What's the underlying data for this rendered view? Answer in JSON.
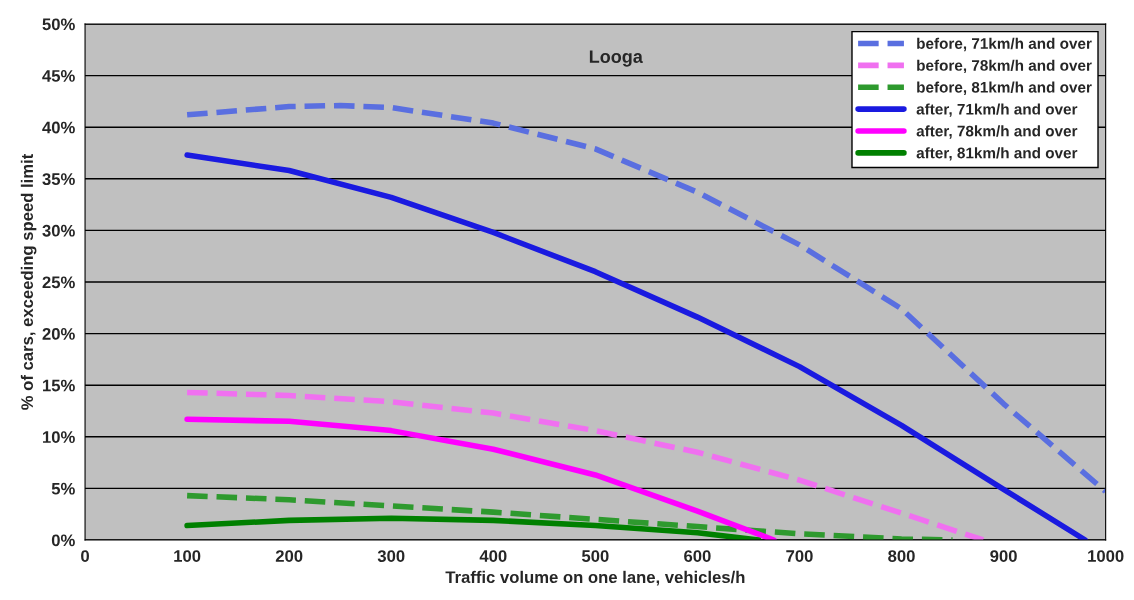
{
  "chart_data": {
    "type": "line",
    "title": "Looga",
    "xlabel": "Traffic volume on one lane, vehicles/h",
    "ylabel": "% of cars, exceeding speed limit",
    "xlim": [
      0,
      1000
    ],
    "xticks": [
      0,
      100,
      200,
      300,
      400,
      500,
      600,
      700,
      800,
      900,
      1000
    ],
    "ylim": [
      0,
      50
    ],
    "yticks": [
      {
        "value": 0,
        "label": "0%"
      },
      {
        "value": 5,
        "label": "5%"
      },
      {
        "value": 10,
        "label": "10%"
      },
      {
        "value": 15,
        "label": "15%"
      },
      {
        "value": 20,
        "label": "20%"
      },
      {
        "value": 25,
        "label": "25%"
      },
      {
        "value": 30,
        "label": "30%"
      },
      {
        "value": 35,
        "label": "35%"
      },
      {
        "value": 40,
        "label": "40%"
      },
      {
        "value": 45,
        "label": "45%"
      },
      {
        "value": 50,
        "label": "50%"
      }
    ],
    "grid": "y",
    "legend": "top right",
    "marker": "none",
    "series": [
      {
        "name": "before, 71km/h and over",
        "color": "#5a6fe0",
        "line_style": "dashed",
        "x": [
          100,
          200,
          250,
          300,
          400,
          500,
          600,
          700,
          800,
          900,
          1000
        ],
        "values": [
          41.2,
          42.0,
          42.1,
          41.9,
          40.4,
          37.9,
          33.7,
          28.6,
          22.4,
          13.2,
          4.7
        ]
      },
      {
        "name": "before, 78km/h and over",
        "color": "#f070f0",
        "line_style": "dashed",
        "x": [
          100,
          200,
          300,
          400,
          500,
          600,
          700,
          800,
          880
        ],
        "values": [
          14.3,
          14.0,
          13.4,
          12.3,
          10.6,
          8.5,
          5.8,
          2.6,
          0
        ]
      },
      {
        "name": "before, 81km/h and over",
        "color": "#2e9a2e",
        "line_style": "dashed",
        "x": [
          100,
          200,
          300,
          400,
          500,
          600,
          700,
          800,
          850
        ],
        "values": [
          4.3,
          3.9,
          3.3,
          2.7,
          2.0,
          1.3,
          0.6,
          0.1,
          0
        ]
      },
      {
        "name": "after, 71km/h and over",
        "color": "#1a1ae0",
        "line_style": "solid",
        "x": [
          100,
          200,
          300,
          400,
          500,
          600,
          700,
          800,
          900,
          980
        ],
        "values": [
          37.3,
          35.8,
          33.2,
          29.8,
          26.0,
          21.6,
          16.8,
          11.1,
          4.9,
          0
        ]
      },
      {
        "name": "after, 78km/h and over",
        "color": "#ff00ff",
        "line_style": "solid",
        "x": [
          100,
          200,
          300,
          400,
          500,
          600,
          675
        ],
        "values": [
          11.7,
          11.5,
          10.6,
          8.8,
          6.3,
          2.8,
          0
        ]
      },
      {
        "name": "after, 81km/h and over",
        "color": "#008000",
        "line_style": "solid",
        "x": [
          100,
          200,
          300,
          400,
          500,
          600,
          660
        ],
        "values": [
          1.4,
          1.9,
          2.1,
          1.9,
          1.4,
          0.7,
          0
        ]
      }
    ]
  }
}
